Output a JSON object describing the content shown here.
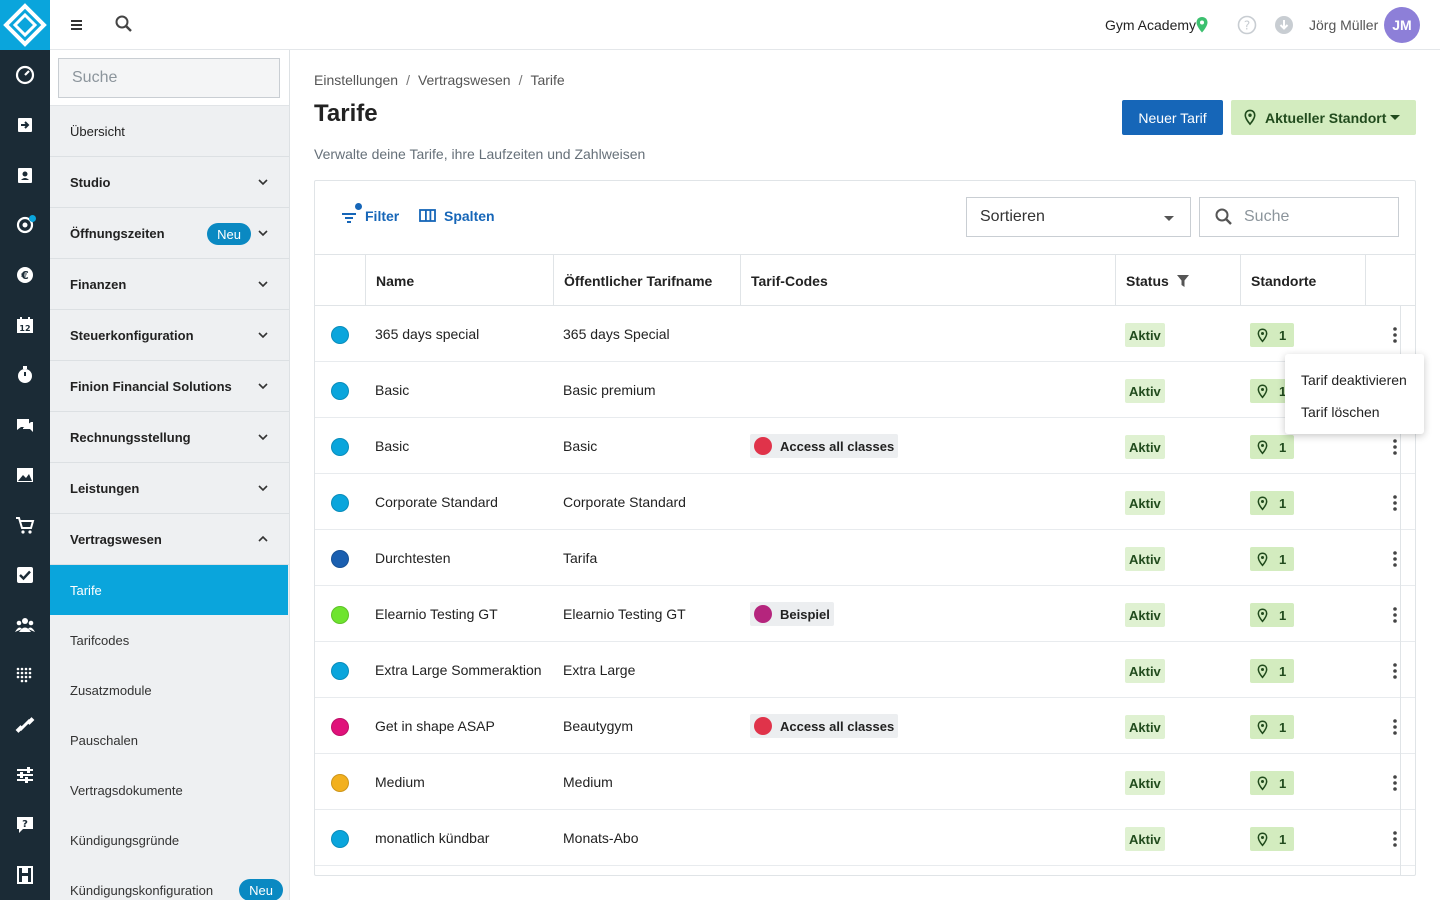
{
  "topbar": {
    "studio": "Gym Academy",
    "username": "Jörg Müller",
    "avatar_initials": "JM",
    "icons": [
      "menu-icon",
      "search-icon",
      "location-pin-icon",
      "help-icon",
      "download-icon"
    ]
  },
  "rail": {
    "icons": [
      "logo-icon",
      "dashboard-icon",
      "check-in-icon",
      "contacts-icon",
      "tracking-icon",
      "finance-icon",
      "calendar-icon",
      "timer-icon",
      "chat-icon",
      "image-icon",
      "cart-icon",
      "checkbox-icon",
      "group-icon",
      "grid-icon",
      "dumbbell-icon",
      "settings-sliders-icon",
      "support-icon",
      "store-icon"
    ],
    "calendar_number": "12"
  },
  "sidebar": {
    "search_placeholder": "Suche",
    "items": [
      {
        "label": "Übersicht",
        "bold": false,
        "chevron": ""
      },
      {
        "label": "Studio",
        "bold": true,
        "chevron": "down"
      },
      {
        "label": "Öffnungszeiten",
        "bold": true,
        "chevron": "down",
        "badge": "Neu"
      },
      {
        "label": "Finanzen",
        "bold": true,
        "chevron": "down"
      },
      {
        "label": "Steuerkonfiguration",
        "bold": true,
        "chevron": "down"
      },
      {
        "label": "Finion Financial Solutions",
        "bold": true,
        "chevron": "down"
      },
      {
        "label": "Rechnungsstellung",
        "bold": true,
        "chevron": "down"
      },
      {
        "label": "Leistungen",
        "bold": true,
        "chevron": "down"
      },
      {
        "label": "Vertragswesen",
        "bold": true,
        "chevron": "up"
      }
    ],
    "sub_items": [
      {
        "label": "Tarife",
        "active": true
      },
      {
        "label": "Tarifcodes"
      },
      {
        "label": "Zusatzmodule"
      },
      {
        "label": "Pauschalen"
      },
      {
        "label": "Vertragsdokumente"
      },
      {
        "label": "Kündigungsgründe"
      },
      {
        "label": "Kündigungskonfiguration",
        "badge": "Neu"
      }
    ]
  },
  "main": {
    "breadcrumb": [
      "Einstellungen",
      "Vertragswesen",
      "Tarife"
    ],
    "title": "Tarife",
    "subtitle": "Verwalte deine Tarife, ihre Laufzeiten und Zahlweisen",
    "new_button": "Neuer Tarif",
    "location_button": "Aktueller Standort",
    "toolbar": {
      "filter": "Filter",
      "columns": "Spalten",
      "sort": "Sortieren",
      "search_placeholder": "Suche"
    },
    "columns": [
      "Name",
      "Öffentlicher Tarifname",
      "Tarif-Codes",
      "Status",
      "Standorte"
    ],
    "rows": [
      {
        "color": "#0aa5dc",
        "name": "365 days special",
        "public": "365 days Special",
        "code": "",
        "code_color": "",
        "status": "Aktiv",
        "locations": "1"
      },
      {
        "color": "#0aa5dc",
        "name": "Basic",
        "public": "Basic premium",
        "code": "",
        "code_color": "",
        "status": "Aktiv",
        "locations": "1"
      },
      {
        "color": "#0aa5dc",
        "name": "Basic",
        "public": "Basic",
        "code": "Access all classes",
        "code_color": "#e0334a",
        "status": "Aktiv",
        "locations": "1"
      },
      {
        "color": "#0aa5dc",
        "name": "Corporate Standard",
        "public": "Corporate Standard",
        "code": "",
        "code_color": "",
        "status": "Aktiv",
        "locations": "1"
      },
      {
        "color": "#1a5fb0",
        "name": "Durchtesten",
        "public": "Tarifa",
        "code": "",
        "code_color": "",
        "status": "Aktiv",
        "locations": "1"
      },
      {
        "color": "#6ee42e",
        "name": "Elearnio Testing GT",
        "public": "Elearnio Testing GT",
        "code": "Beispiel",
        "code_color": "#b5257d",
        "status": "Aktiv",
        "locations": "1"
      },
      {
        "color": "#0aa5dc",
        "name": "Extra Large Sommeraktion",
        "public": "Extra Large",
        "code": "",
        "code_color": "",
        "status": "Aktiv",
        "locations": "1"
      },
      {
        "color": "#e0117a",
        "name": "Get in shape ASAP",
        "public": "Beautygym",
        "code": "Access all classes",
        "code_color": "#e0334a",
        "status": "Aktiv",
        "locations": "1"
      },
      {
        "color": "#f2b01e",
        "name": "Medium",
        "public": "Medium",
        "code": "",
        "code_color": "",
        "status": "Aktiv",
        "locations": "1"
      },
      {
        "color": "#0aa5dc",
        "name": "monatlich kündbar",
        "public": "Monats-Abo",
        "code": "",
        "code_color": "",
        "status": "Aktiv",
        "locations": "1"
      }
    ],
    "context_menu": [
      "Tarif deaktivieren",
      "Tarif löschen"
    ]
  }
}
